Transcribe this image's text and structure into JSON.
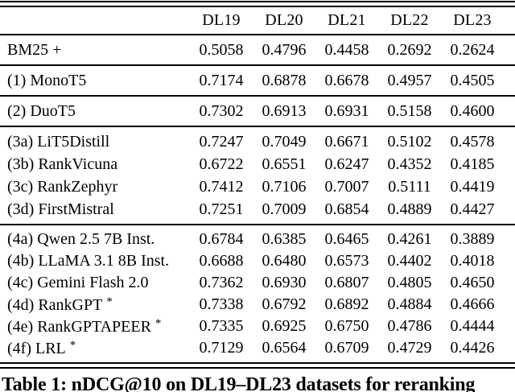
{
  "table": {
    "columns": [
      "DL19",
      "DL20",
      "DL21",
      "DL22",
      "DL23"
    ],
    "groups": [
      {
        "rows": [
          {
            "label": "BM25 +",
            "values": [
              "0.5058",
              "0.4796",
              "0.4458",
              "0.2692",
              "0.2624"
            ]
          }
        ]
      },
      {
        "rows": [
          {
            "label": "(1) MonoT5",
            "values": [
              "0.7174",
              "0.6878",
              "0.6678",
              "0.4957",
              "0.4505"
            ]
          }
        ]
      },
      {
        "rows": [
          {
            "label": "(2) DuoT5",
            "values": [
              "0.7302",
              "0.6913",
              "0.6931",
              "0.5158",
              "0.4600"
            ]
          }
        ]
      },
      {
        "rows": [
          {
            "label": "(3a) LiT5Distill",
            "values": [
              "0.7247",
              "0.7049",
              "0.6671",
              "0.5102",
              "0.4578"
            ]
          },
          {
            "label": "(3b) RankVicuna",
            "values": [
              "0.6722",
              "0.6551",
              "0.6247",
              "0.4352",
              "0.4185"
            ]
          },
          {
            "label": "(3c) RankZephyr",
            "values": [
              "0.7412",
              "0.7106",
              "0.7007",
              "0.5111",
              "0.4419"
            ]
          },
          {
            "label": "(3d) FirstMistral",
            "values": [
              "0.7251",
              "0.7009",
              "0.6854",
              "0.4889",
              "0.4427"
            ]
          }
        ]
      },
      {
        "rows": [
          {
            "label": "(4a) Qwen 2.5 7B Inst.",
            "values": [
              "0.6784",
              "0.6385",
              "0.6465",
              "0.4261",
              "0.3889"
            ]
          },
          {
            "label": "(4b) LLaMA 3.1 8B Inst.",
            "values": [
              "0.6688",
              "0.6480",
              "0.6573",
              "0.4402",
              "0.4018"
            ]
          },
          {
            "label": "(4c) Gemini Flash 2.0",
            "values": [
              "0.7362",
              "0.6930",
              "0.6807",
              "0.4805",
              "0.4650"
            ]
          },
          {
            "label": "(4d) RankGPT",
            "marker": "*",
            "values": [
              "0.7338",
              "0.6792",
              "0.6892",
              "0.4884",
              "0.4666"
            ]
          },
          {
            "label": "(4e) RankGPTAPEER",
            "marker": "*",
            "values": [
              "0.7335",
              "0.6925",
              "0.6750",
              "0.4786",
              "0.4444"
            ]
          },
          {
            "label": "(4f) LRL",
            "marker": "*",
            "values": [
              "0.7129",
              "0.6564",
              "0.6709",
              "0.4729",
              "0.4426"
            ]
          }
        ]
      }
    ],
    "caption": "Table 1: nDCG@10 on DL19–DL23 datasets for reranking"
  }
}
